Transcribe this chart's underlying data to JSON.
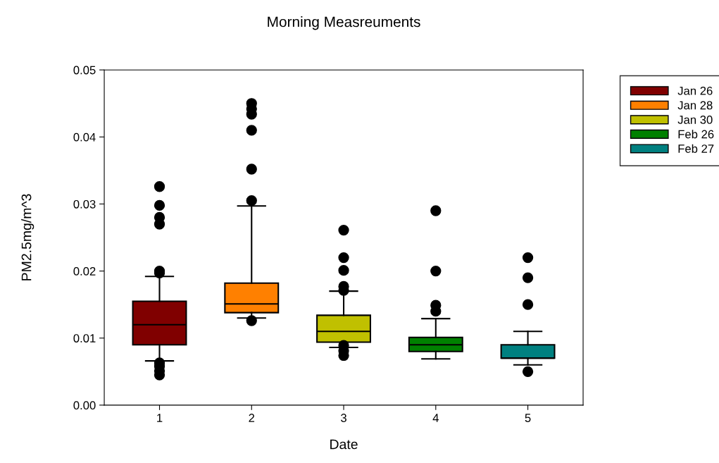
{
  "chart_data": {
    "type": "box",
    "title": "Morning Measreuments",
    "xlabel": "Date",
    "ylabel": "PM2.5mg/m^3",
    "categories": [
      "1",
      "2",
      "3",
      "4",
      "5"
    ],
    "ylim": [
      0,
      0.05
    ],
    "yticks": [
      {
        "value": 0,
        "label": "0.00"
      },
      0.01,
      0.02,
      0.03,
      0.04,
      0.05
    ],
    "legend": "right",
    "grid": false,
    "marker": "circle",
    "series": [
      {
        "name": "Jan 26",
        "color": "#800000",
        "boxes": [
          {
            "low": 0.0066,
            "q1": 0.009,
            "median": 0.012,
            "q3": 0.0155,
            "high": 0.0192,
            "outliers": [
              0.0326,
              0.0298,
              0.028,
              0.027,
              0.02,
              0.0197,
              0.0063,
              0.0058,
              0.0051,
              0.0045
            ]
          },
          null,
          null,
          null,
          null
        ]
      },
      {
        "name": "Jan 28",
        "color": "#ff8000",
        "boxes": [
          null,
          {
            "low": 0.013,
            "q1": 0.0138,
            "median": 0.0151,
            "q3": 0.0182,
            "high": 0.0297,
            "outliers": [
              0.045,
              0.0442,
              0.0434,
              0.041,
              0.0352,
              0.0305,
              0.0126
            ]
          },
          null,
          null,
          null
        ]
      },
      {
        "name": "Jan 30",
        "color": "#c0c000",
        "boxes": [
          null,
          null,
          {
            "low": 0.0086,
            "q1": 0.0094,
            "median": 0.011,
            "q3": 0.0134,
            "high": 0.017,
            "outliers": [
              0.0261,
              0.022,
              0.0201,
              0.0177,
              0.0171,
              0.0089,
              0.0081,
              0.0074
            ]
          },
          null,
          null
        ]
      },
      {
        "name": "Feb 26",
        "color": "#008000",
        "boxes": [
          null,
          null,
          null,
          {
            "low": 0.0069,
            "q1": 0.008,
            "median": 0.009,
            "q3": 0.0101,
            "high": 0.0129,
            "outliers": [
              0.029,
              0.02,
              0.0149,
              0.014
            ]
          },
          null
        ]
      },
      {
        "name": "Feb 27",
        "color": "#008080",
        "boxes": [
          null,
          null,
          null,
          null,
          {
            "low": 0.006,
            "q1": 0.007,
            "median": 0.007,
            "q3": 0.009,
            "high": 0.011,
            "outliers": [
              0.022,
              0.019,
              0.015,
              0.005
            ]
          }
        ]
      }
    ]
  }
}
